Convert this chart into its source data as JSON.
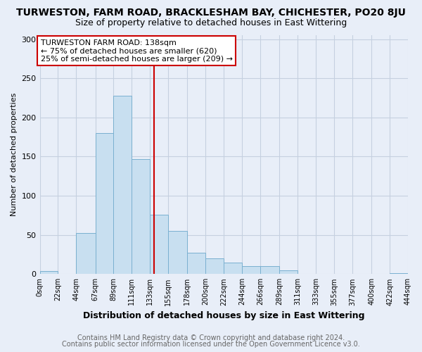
{
  "title": "TURWESTON, FARM ROAD, BRACKLESHAM BAY, CHICHESTER, PO20 8JU",
  "subtitle": "Size of property relative to detached houses in East Wittering",
  "xlabel": "Distribution of detached houses by size in East Wittering",
  "ylabel": "Number of detached properties",
  "bar_color": "#c8dff0",
  "bar_edge_color": "#7ab0d0",
  "vline_color": "#cc0000",
  "vline_x": 138,
  "annotation_line1": "TURWESTON FARM ROAD: 138sqm",
  "annotation_line2": "← 75% of detached houses are smaller (620)",
  "annotation_line3": "25% of semi-detached houses are larger (209) →",
  "bin_edges": [
    0,
    22,
    44,
    67,
    89,
    111,
    133,
    155,
    178,
    200,
    222,
    244,
    266,
    289,
    311,
    333,
    355,
    377,
    400,
    422,
    444
  ],
  "bar_heights": [
    4,
    0,
    52,
    180,
    228,
    147,
    76,
    55,
    27,
    20,
    15,
    10,
    10,
    5,
    0,
    0,
    0,
    0,
    0,
    1
  ],
  "ylim": [
    0,
    305
  ],
  "yticks": [
    0,
    50,
    100,
    150,
    200,
    250,
    300
  ],
  "footer_line1": "Contains HM Land Registry data © Crown copyright and database right 2024.",
  "footer_line2": "Contains public sector information licensed under the Open Government Licence v3.0.",
  "fig_bg_color": "#e8eef8",
  "plot_bg_color": "#e8eef8",
  "grid_color": "#c5d0e0",
  "footer_color": "#666666",
  "title_fontsize": 10,
  "subtitle_fontsize": 9,
  "xlabel_fontsize": 9,
  "ylabel_fontsize": 8,
  "tick_fontsize": 7,
  "footer_fontsize": 7,
  "annot_fontsize": 8
}
